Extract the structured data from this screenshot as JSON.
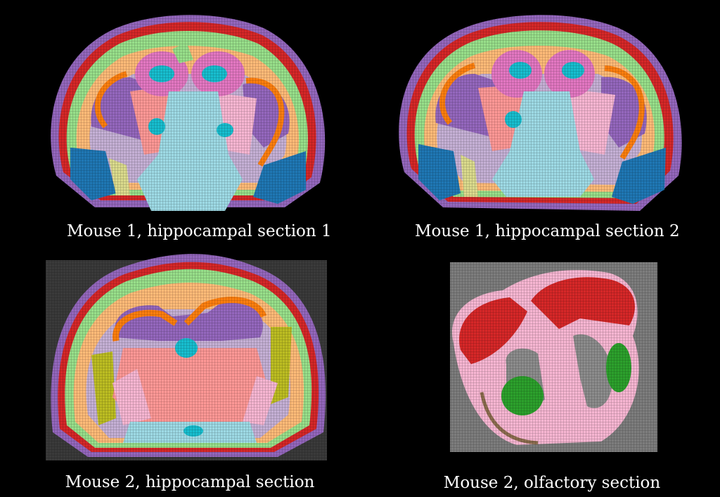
{
  "panels": [
    {
      "caption": "Mouse 1, hippocampal section 1"
    },
    {
      "caption": "Mouse 1, hippocampal section 2"
    },
    {
      "caption": "Mouse 2, hippocampal section"
    },
    {
      "caption": "Mouse 2, olfactory section"
    }
  ],
  "colors": {
    "background": "#000000",
    "caption": "#ffffff",
    "tissue_gray": "#7d7d7d",
    "red": "#d62728",
    "purple": "#9467bd",
    "lavender": "#c5b0d5",
    "orange": "#ff7f0e",
    "light_orange": "#ffbb78",
    "green_light": "#98df8a",
    "green": "#2ca02c",
    "pink": "#e377c2",
    "light_pink": "#f7b6d2",
    "salmon": "#ff9896",
    "cyan": "#17becf",
    "light_cyan": "#9edae5",
    "blue": "#1f77b4",
    "olive": "#bcbd22",
    "khaki": "#dbdb8d",
    "gray_region": "#8c8c8c"
  }
}
